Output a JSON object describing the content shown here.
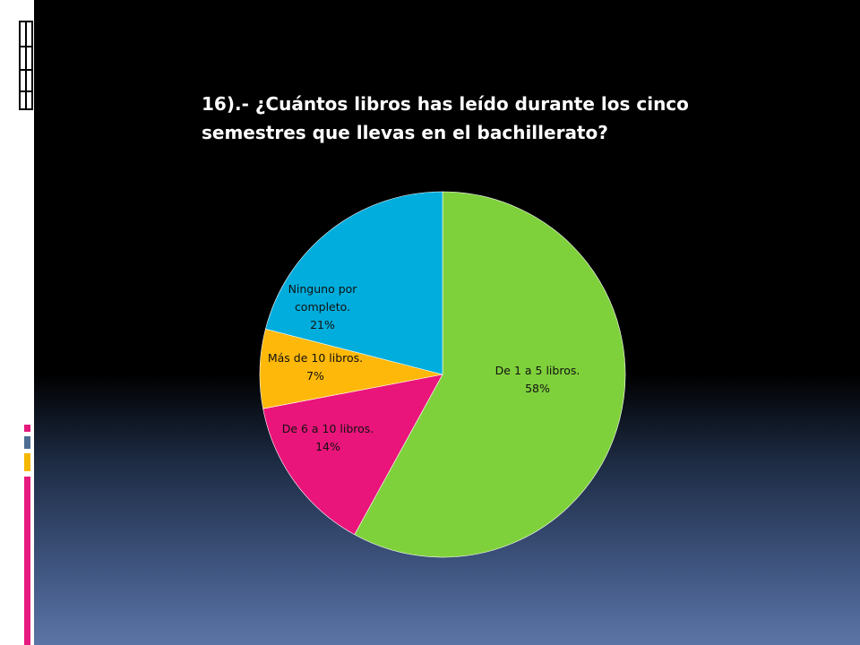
{
  "slide": {
    "title": "16).- ¿Cuántos libros has leído durante los cinco semestres que llevas en el bachillerato?"
  },
  "decor": {
    "accent_colors": [
      "#e6197e",
      "#4d6e92",
      "#f5b700",
      "#e6197e"
    ],
    "icon": "document-grid-icon"
  },
  "chart_data": {
    "type": "pie",
    "title": "16).- ¿Cuántos libros has leído durante los cinco semestres que llevas en el bachillerato?",
    "start": "12 o'clock",
    "direction": "clockwise",
    "slices": [
      {
        "label_lines": [
          "De 1 a 5 libros."
        ],
        "pct": "58%",
        "value": 58,
        "color": "#7fd13b"
      },
      {
        "label_lines": [
          "De 6 a 10 libros."
        ],
        "pct": "14%",
        "value": 14,
        "color": "#ea157a"
      },
      {
        "label_lines": [
          "Más de 10 libros."
        ],
        "pct": "7%",
        "value": 7,
        "color": "#feb80a"
      },
      {
        "label_lines": [
          "Ninguno por",
          "completo."
        ],
        "pct": "21%",
        "value": 21,
        "color": "#00addc"
      }
    ]
  }
}
